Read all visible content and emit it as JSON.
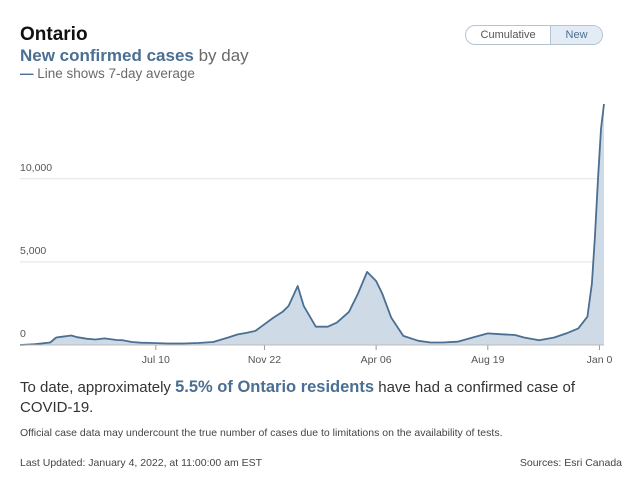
{
  "header": {
    "region": "Ontario",
    "subtitle_highlight": "New confirmed cases",
    "subtitle_rest": " by day",
    "legend_dash": "—",
    "legend_text": " Line shows 7-day average"
  },
  "toggle": {
    "cumulative_label": "Cumulative",
    "new_label": "New",
    "active": "New"
  },
  "colors": {
    "line": "#4a6f92",
    "fill": "#cfdae7",
    "grid": "#e3e3e3",
    "accent": "#4a6f92"
  },
  "chart_data": {
    "type": "area",
    "title": "",
    "xlabel": "",
    "ylabel": "",
    "ylim": [
      0,
      14500
    ],
    "grid": true,
    "yticks": [
      {
        "value": 0,
        "label": "0"
      },
      {
        "value": 5000,
        "label": "5,000"
      },
      {
        "value": 10000,
        "label": "10,000"
      }
    ],
    "xticks": [
      {
        "x": 2020.53,
        "label": "Jul 10"
      },
      {
        "x": 2020.89,
        "label": "Nov 22"
      },
      {
        "x": 2021.26,
        "label": "Apr 06"
      },
      {
        "x": 2021.63,
        "label": "Aug 19"
      },
      {
        "x": 2022.0,
        "label": "Jan 0"
      }
    ],
    "series": [
      {
        "x": [
          2020.08,
          2020.13,
          2020.18,
          2020.2,
          2020.22,
          2020.25,
          2020.27,
          2020.3,
          2020.33,
          2020.36,
          2020.4,
          2020.42,
          2020.45,
          2020.48,
          2020.52,
          2020.57,
          2020.62,
          2020.67,
          2020.72,
          2020.77,
          2020.8,
          2020.83,
          2020.86,
          2020.89,
          2020.92,
          2020.95,
          2020.97,
          2021.0,
          2021.02,
          2021.06,
          2021.1,
          2021.13,
          2021.17,
          2021.2,
          2021.23,
          2021.26,
          2021.28,
          2021.31,
          2021.35,
          2021.4,
          2021.44,
          2021.48,
          2021.53,
          2021.58,
          2021.63,
          2021.67,
          2021.72,
          2021.75,
          2021.8,
          2021.85,
          2021.89,
          2021.93,
          2021.96,
          2021.975,
          2021.985,
          2021.995,
          2022.005,
          2022.015
        ],
        "y": [
          0,
          50,
          150,
          450,
          500,
          570,
          470,
          380,
          330,
          400,
          300,
          290,
          180,
          140,
          120,
          90,
          90,
          120,
          180,
          450,
          630,
          730,
          850,
          1250,
          1650,
          2000,
          2350,
          3550,
          2350,
          1100,
          1100,
          1350,
          2000,
          3100,
          4400,
          3850,
          3100,
          1650,
          550,
          250,
          150,
          150,
          200,
          450,
          700,
          650,
          600,
          450,
          280,
          450,
          700,
          1000,
          1700,
          3700,
          6500,
          10000,
          13000,
          14500
        ]
      }
    ]
  },
  "summary": {
    "before": "To date, approximately ",
    "percent": "5.5%",
    "middle": " of Ontario residents",
    "after": " have had a confirmed case of COVID-19."
  },
  "note": "Official case data may undercount the true number of cases due to limitations on the availability of tests.",
  "updated": "Last Updated: January 4, 2022, at 11:00:00 am EST",
  "sources": "Sources: Esri Canada"
}
